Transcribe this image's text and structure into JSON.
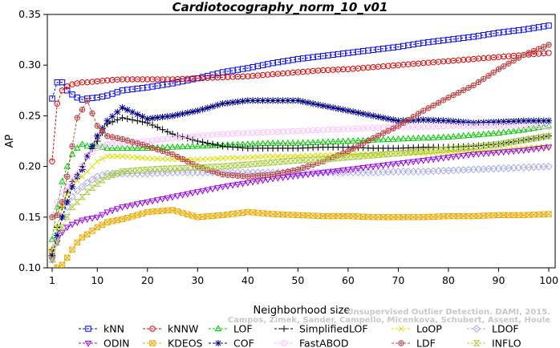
{
  "chart_data": {
    "type": "line",
    "title": "Cardiotocography_norm_10_v01",
    "xlabel": "Neighborhood size",
    "ylabel": "AP",
    "xlim": [
      1,
      100
    ],
    "ylim": [
      0.1,
      0.35
    ],
    "xticks": [
      1,
      10,
      20,
      30,
      40,
      50,
      60,
      70,
      80,
      90,
      100
    ],
    "yticks": [
      0.1,
      0.15,
      0.2,
      0.25,
      0.3,
      0.35
    ],
    "ytick_labels": [
      "0.10",
      "0.15",
      "0.20",
      "0.25",
      "0.30",
      "0.35"
    ],
    "grid": false,
    "legend_position": "bottom",
    "x_knots": [
      1,
      2,
      3,
      4,
      5,
      6,
      7,
      8,
      10,
      12,
      15,
      20,
      25,
      30,
      35,
      40,
      45,
      50,
      55,
      60,
      65,
      70,
      75,
      80,
      85,
      90,
      95,
      100
    ],
    "series": [
      {
        "name": "kNN",
        "color": "#0000ee",
        "marker": "square",
        "values": [
          0.267,
          0.283,
          0.283,
          0.275,
          0.271,
          0.268,
          0.266,
          0.267,
          0.268,
          0.27,
          0.275,
          0.278,
          0.282,
          0.287,
          0.293,
          0.297,
          0.302,
          0.306,
          0.309,
          0.312,
          0.315,
          0.318,
          0.322,
          0.325,
          0.328,
          0.332,
          0.335,
          0.339
        ]
      },
      {
        "name": "kNNW",
        "color": "#dd0000",
        "marker": "circle",
        "values": [
          0.205,
          0.262,
          0.275,
          0.279,
          0.281,
          0.282,
          0.283,
          0.283,
          0.284,
          0.285,
          0.286,
          0.286,
          0.286,
          0.287,
          0.288,
          0.289,
          0.291,
          0.293,
          0.295,
          0.296,
          0.298,
          0.3,
          0.302,
          0.304,
          0.306,
          0.308,
          0.31,
          0.312
        ]
      },
      {
        "name": "LOF",
        "color": "#00cc00",
        "marker": "triangle-up",
        "values": [
          0.128,
          0.16,
          0.185,
          0.2,
          0.212,
          0.218,
          0.222,
          0.22,
          0.22,
          0.218,
          0.218,
          0.218,
          0.219,
          0.22,
          0.221,
          0.222,
          0.223,
          0.223,
          0.224,
          0.225,
          0.226,
          0.227,
          0.228,
          0.229,
          0.231,
          0.233,
          0.236,
          0.24
        ]
      },
      {
        "name": "SimplifiedLOF",
        "color": "#000000",
        "marker": "plus",
        "values": [
          0.118,
          0.14,
          0.16,
          0.175,
          0.185,
          0.192,
          0.2,
          0.21,
          0.225,
          0.242,
          0.248,
          0.243,
          0.232,
          0.225,
          0.22,
          0.218,
          0.218,
          0.218,
          0.219,
          0.219,
          0.218,
          0.218,
          0.219,
          0.219,
          0.22,
          0.222,
          0.226,
          0.23
        ]
      },
      {
        "name": "LoOP",
        "color": "#dddd00",
        "marker": "x",
        "values": [
          0.118,
          0.14,
          0.16,
          0.172,
          0.18,
          0.186,
          0.19,
          0.195,
          0.205,
          0.21,
          0.21,
          0.208,
          0.207,
          0.207,
          0.208,
          0.209,
          0.21,
          0.21,
          0.211,
          0.212,
          0.212,
          0.213,
          0.213,
          0.214,
          0.215,
          0.216,
          0.218,
          0.22
        ]
      },
      {
        "name": "LDOF",
        "color": "#aaaaee",
        "marker": "diamond",
        "values": [
          0.112,
          0.13,
          0.15,
          0.16,
          0.17,
          0.176,
          0.18,
          0.184,
          0.19,
          0.193,
          0.193,
          0.193,
          0.194,
          0.194,
          0.194,
          0.194,
          0.194,
          0.194,
          0.194,
          0.194,
          0.194,
          0.195,
          0.195,
          0.196,
          0.197,
          0.198,
          0.199,
          0.2
        ]
      },
      {
        "name": "ODIN",
        "color": "#9900ee",
        "marker": "triangle-down",
        "values": [
          0.108,
          0.125,
          0.135,
          0.14,
          0.143,
          0.145,
          0.147,
          0.148,
          0.15,
          0.155,
          0.16,
          0.165,
          0.17,
          0.175,
          0.18,
          0.184,
          0.188,
          0.191,
          0.194,
          0.197,
          0.2,
          0.203,
          0.206,
          0.209,
          0.212,
          0.214,
          0.216,
          0.219
        ]
      },
      {
        "name": "KDEOS",
        "color": "#eeaa00",
        "marker": "square-x",
        "values": [
          0.115,
          0.1,
          0.103,
          0.11,
          0.118,
          0.125,
          0.13,
          0.133,
          0.14,
          0.145,
          0.148,
          0.155,
          0.157,
          0.15,
          0.152,
          0.155,
          0.153,
          0.152,
          0.151,
          0.151,
          0.15,
          0.15,
          0.15,
          0.151,
          0.151,
          0.152,
          0.152,
          0.153
        ]
      },
      {
        "name": "COF",
        "color": "#000088",
        "marker": "asterisk",
        "values": [
          0.112,
          0.132,
          0.15,
          0.165,
          0.18,
          0.19,
          0.197,
          0.21,
          0.23,
          0.245,
          0.258,
          0.247,
          0.25,
          0.255,
          0.262,
          0.265,
          0.265,
          0.265,
          0.26,
          0.255,
          0.25,
          0.245,
          0.246,
          0.245,
          0.243,
          0.244,
          0.245,
          0.245
        ]
      },
      {
        "name": "FastABOD",
        "color": "#ffbbff",
        "marker": "circle-dot",
        "values": [
          0.15,
          0.165,
          0.175,
          0.18,
          0.185,
          0.192,
          0.2,
          0.21,
          0.218,
          0.222,
          0.223,
          0.225,
          0.228,
          0.23,
          0.232,
          0.233,
          0.234,
          0.235,
          0.236,
          0.237,
          0.238,
          0.239,
          0.239,
          0.24,
          0.24,
          0.24,
          0.24,
          0.239
        ]
      },
      {
        "name": "LDF",
        "color": "#bb4444",
        "marker": "circle-plus",
        "values": [
          0.15,
          0.152,
          0.165,
          0.19,
          0.22,
          0.248,
          0.256,
          0.265,
          0.24,
          0.23,
          0.227,
          0.22,
          0.212,
          0.2,
          0.192,
          0.19,
          0.192,
          0.197,
          0.205,
          0.215,
          0.228,
          0.24,
          0.255,
          0.268,
          0.28,
          0.296,
          0.31,
          0.32
        ]
      },
      {
        "name": "INFLO",
        "color": "#aacc44",
        "marker": "hourglass",
        "values": [
          0.108,
          0.125,
          0.14,
          0.15,
          0.16,
          0.165,
          0.17,
          0.175,
          0.183,
          0.19,
          0.195,
          0.197,
          0.198,
          0.199,
          0.2,
          0.202,
          0.204,
          0.206,
          0.207,
          0.209,
          0.211,
          0.213,
          0.215,
          0.217,
          0.219,
          0.222,
          0.226,
          0.23
        ]
      }
    ],
    "legend_layout": [
      [
        "kNN",
        "kNNW",
        "LOF",
        "SimplifiedLOF",
        "LoOP",
        "LDOF"
      ],
      [
        "ODIN",
        "KDEOS",
        "COF",
        "FastABOD",
        "LDF",
        "INFLO"
      ]
    ]
  },
  "watermark": {
    "line1": "Unsupervised Outlier Detection. DAMI, 2015.",
    "line2": "Campos, Zimek, Sander, Campello, Micenkova, Schubert, Assent, Houle"
  }
}
